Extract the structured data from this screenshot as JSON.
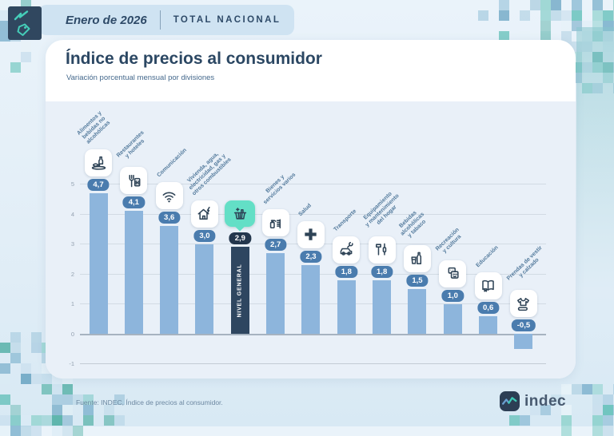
{
  "header": {
    "period": "Enero de 2026",
    "scope": "TOTAL NACIONAL"
  },
  "main": {
    "title": "Índice de precios al consumidor",
    "subtitle": "Variación porcentual mensual por divisiones"
  },
  "chart_data": {
    "type": "bar",
    "title": "Índice de precios al consumidor",
    "subtitle": "Variación porcentual mensual por divisiones",
    "ylim": [
      -1,
      5
    ],
    "yticks": [
      5,
      4,
      3,
      2,
      1,
      0,
      -1
    ],
    "grid": true,
    "legend": "none",
    "categories": [
      "Alimentos y bebidas no alcohólicas",
      "Restaurantes y hoteles",
      "Comunicación",
      "Vivienda, agua, electricidad, gas y otros combustibles",
      "Nivel general",
      "Bienes y servicios varios",
      "Salud",
      "Transporte",
      "Equipamiento y mantenimiento del hogar",
      "Bebidas alcohólicas y tabaco",
      "Recreación y cultura",
      "Educación",
      "Prendas de vestir y calzado"
    ],
    "values": [
      4.7,
      4.1,
      3.6,
      3.0,
      2.9,
      2.7,
      2.3,
      1.8,
      1.8,
      1.5,
      1.0,
      0.6,
      -0.5
    ],
    "value_labels": [
      "4,7",
      "4,1",
      "3,6",
      "3,0",
      "2,9",
      "2,7",
      "2,3",
      "1,8",
      "1,8",
      "1,5",
      "1,0",
      "0,6",
      "-0,5"
    ],
    "label_lines": [
      [
        "Alimentos y",
        "bebidas no",
        "alcohólicas"
      ],
      [
        "Restaurantes",
        "y hoteles"
      ],
      [
        "Comunicación"
      ],
      [
        "Vivienda, agua,",
        "electricidad, gas y",
        "otros combustibles"
      ],
      [],
      [
        "Bienes y",
        "servicios varios"
      ],
      [
        "Salud"
      ],
      [
        "Transporte"
      ],
      [
        "Equipamiento",
        "y mantenimiento",
        "del hogar"
      ],
      [
        "Bebidas",
        "alcohólicas",
        "y tabaco"
      ],
      [
        "Recreación",
        "y cultura"
      ],
      [
        "Educación"
      ],
      [
        "Prendas de vestir",
        "y calzado"
      ]
    ],
    "icons": [
      "food-drinks-icon",
      "restaurants-hotels-icon",
      "communication-icon",
      "housing-utilities-icon",
      "general-level-basket-icon",
      "misc-goods-icon",
      "health-icon",
      "transport-icon",
      "home-equipment-icon",
      "alcohol-tobacco-icon",
      "recreation-culture-icon",
      "education-icon",
      "clothing-footwear-icon"
    ],
    "highlight": {
      "index": 4,
      "bar_label": "NIVEL GENERAL"
    },
    "colors": {
      "bar": "#8db5dc",
      "value_badge": "#4a7cae",
      "highlight_bar": "#2e4660",
      "highlight_badge": "#24374d",
      "highlight_bubble": "#63dfc6",
      "icon_stroke": "#2e4356",
      "category_label": "#537a9c",
      "tick_label": "#94a2b1",
      "gridline": "#d2dbe4",
      "zero_line": "#a6b3c0"
    }
  },
  "footer": {
    "source": "Fuente: INDEC, Índice de precios al consumidor.",
    "logo_text": "indec"
  }
}
